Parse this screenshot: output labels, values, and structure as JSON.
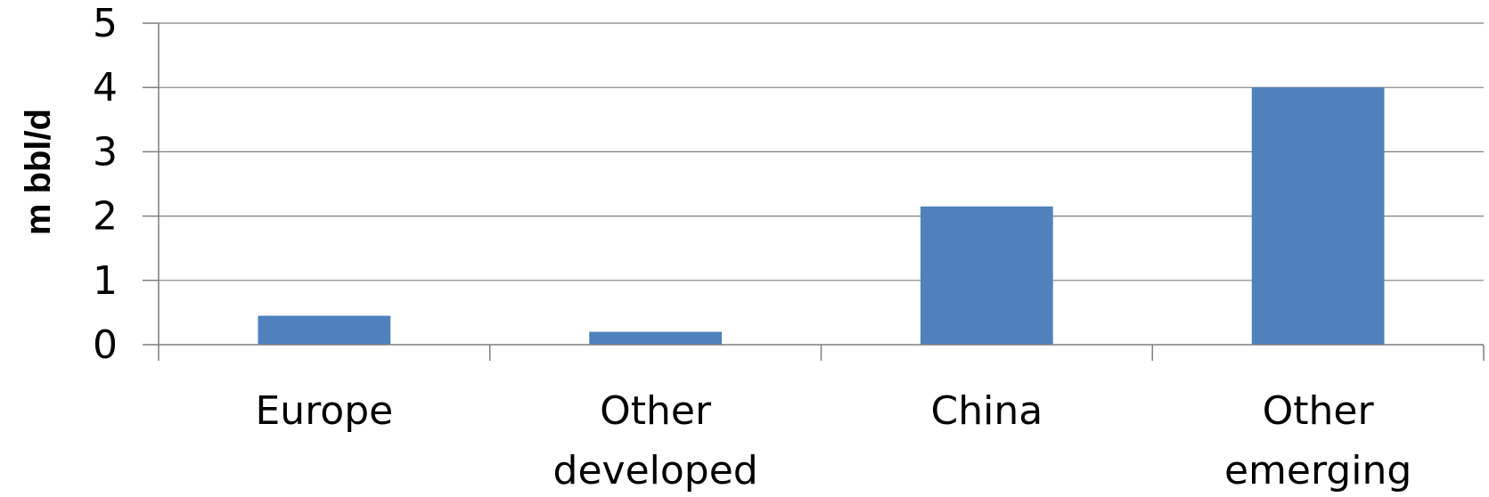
{
  "chart_data": {
    "type": "bar",
    "title": "",
    "xlabel": "",
    "ylabel": "m bbl/d",
    "categories": [
      [
        "Europe"
      ],
      [
        "Other",
        "developed"
      ],
      [
        "China"
      ],
      [
        "Other",
        "emerging"
      ]
    ],
    "values": [
      0.45,
      0.2,
      2.15,
      4.0
    ],
    "ylim": [
      0,
      5
    ],
    "yticks": [
      0,
      1,
      2,
      3,
      4,
      5
    ],
    "grid": true,
    "legend": "none",
    "colors": {
      "bar": "#4f81bd",
      "grid": "#7f7f7f",
      "axis": "#7f7f7f"
    }
  }
}
